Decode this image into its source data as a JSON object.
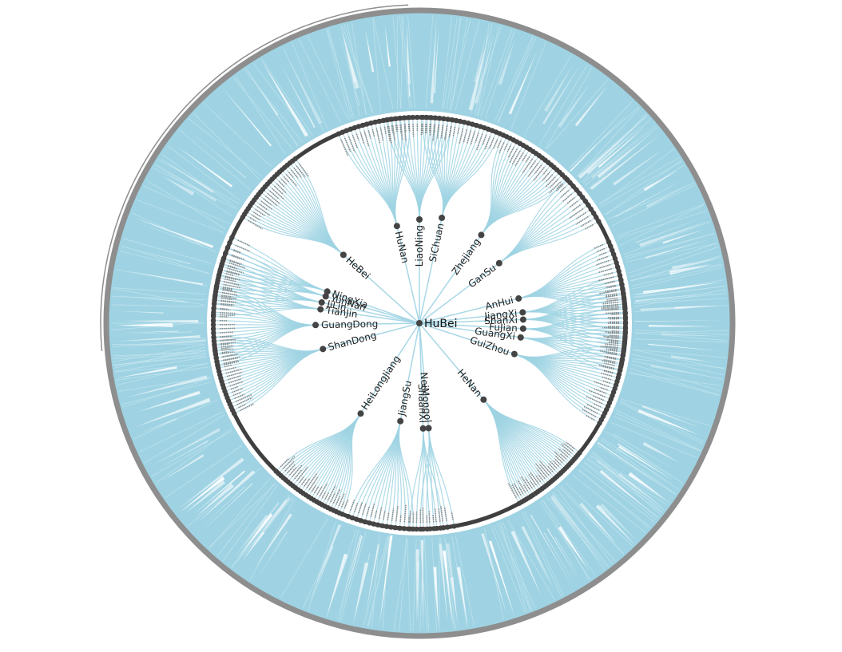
{
  "chart_data": {
    "type": "radial-tree",
    "root": "HuBei",
    "provinces": [
      {
        "name": "HuNan",
        "angle": 257,
        "r": 125,
        "leaves": 18
      },
      {
        "name": "LiaoNing",
        "angle": 270,
        "r": 130,
        "leaves": 16
      },
      {
        "name": "SiChuan",
        "angle": 282,
        "r": 135,
        "leaves": 20
      },
      {
        "name": "Zhejiang",
        "angle": 305,
        "r": 135,
        "leaves": 22
      },
      {
        "name": "GanSu",
        "angle": 323,
        "r": 125,
        "leaves": 12
      },
      {
        "name": "AnHui",
        "angle": 346,
        "r": 128,
        "leaves": 16
      },
      {
        "name": "JiangXi",
        "angle": 354,
        "r": 130,
        "leaves": 12
      },
      {
        "name": "ShanXi",
        "angle": 358,
        "r": 130,
        "leaves": 12
      },
      {
        "name": "FuJian",
        "angle": 3,
        "r": 130,
        "leaves": 12
      },
      {
        "name": "GuangXi",
        "angle": 8,
        "r": 128,
        "leaves": 10
      },
      {
        "name": "GuiZhou",
        "angle": 18,
        "r": 125,
        "leaves": 22
      },
      {
        "name": "HeNan",
        "angle": 50,
        "r": 125,
        "leaves": 30
      },
      {
        "name": "NeiMongol",
        "angle": 85,
        "r": 132,
        "leaves": 6
      },
      {
        "name": "ShaanXi",
        "angle": 88,
        "r": 132,
        "leaves": 6
      },
      {
        "name": "JiangSu",
        "angle": 101,
        "r": 125,
        "leaves": 16
      },
      {
        "name": "HeiLongJiang",
        "angle": 123,
        "r": 135,
        "leaves": 26
      },
      {
        "name": "ShanDong",
        "angle": 165,
        "r": 125,
        "leaves": 24
      },
      {
        "name": "GuangDong",
        "angle": 179,
        "r": 130,
        "leaves": 20
      },
      {
        "name": "TianJin",
        "angle": 188,
        "r": 125,
        "leaves": 8
      },
      {
        "name": "JiLin",
        "angle": 192,
        "r": 125,
        "leaves": 8
      },
      {
        "name": "YunNan",
        "angle": 196,
        "r": 122,
        "leaves": 8
      },
      {
        "name": "NingXia",
        "angle": 199,
        "r": 122,
        "leaves": 8
      },
      {
        "name": "HeBei",
        "angle": 222,
        "r": 128,
        "leaves": 24
      }
    ]
  },
  "colors": {
    "link": "#9fd3e3",
    "node": "#444444",
    "ring": "#3f3f3f",
    "outer_ring": "#8e8e8e",
    "background": "#ffffff"
  }
}
